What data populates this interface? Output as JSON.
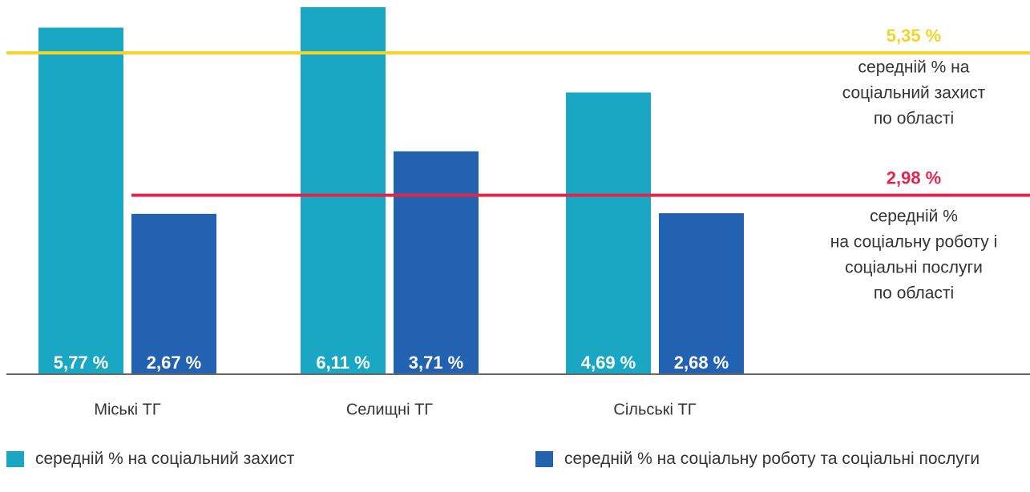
{
  "chart_data": {
    "type": "bar",
    "categories": [
      "Міські ТГ",
      "Селищні ТГ",
      "Сільські ТГ"
    ],
    "series": [
      {
        "name": "середній % на соціальний захист",
        "color": "#1aa7c4",
        "values": [
          5.77,
          6.11,
          4.69
        ],
        "value_labels": [
          "5,77 %",
          "6,11 %",
          "4,69 %"
        ]
      },
      {
        "name": "середній % на соціальну роботу та соціальні послуги",
        "color": "#2262b0",
        "values": [
          2.67,
          3.71,
          2.68
        ],
        "value_labels": [
          "2,67 %",
          "3,71 %",
          "2,68 %"
        ]
      }
    ],
    "reference_lines": [
      {
        "value": 5.35,
        "label": "5,35 %",
        "color": "#f5d327",
        "note": [
          "середній % на",
          "соціальний захист",
          "по області"
        ]
      },
      {
        "value": 2.98,
        "label": "2,98 %",
        "color": "#e0264a",
        "note": [
          "середній %",
          "на соціальну роботу і",
          "соціальні послуги",
          "по області"
        ]
      }
    ],
    "ylim": [
      0,
      6.23
    ]
  }
}
